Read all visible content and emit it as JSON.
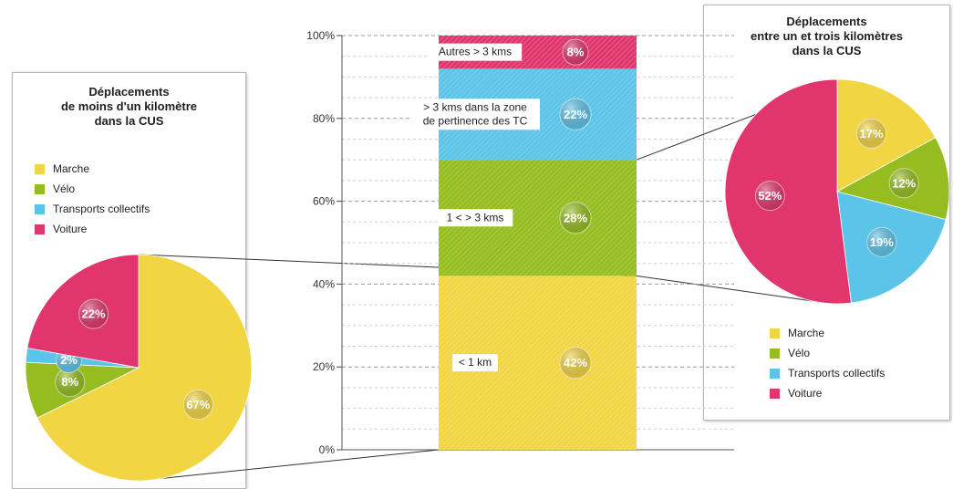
{
  "colors": {
    "marche": "#f2d543",
    "velo": "#95bd1f",
    "transports": "#5cc3e9",
    "voiture": "#e0356d"
  },
  "left_panel": {
    "title": "Déplacements\nde moins d'un kilomètre\ndans la CUS",
    "legend": [
      {
        "label": "Marche",
        "color": "#f2d543"
      },
      {
        "label": "Vélo",
        "color": "#95bd1f"
      },
      {
        "label": "Transports collectifs",
        "color": "#5cc3e9"
      },
      {
        "label": "Voiture",
        "color": "#e0356d"
      }
    ]
  },
  "right_panel": {
    "title": "Déplacements\nentre un et trois kilomètres\ndans la CUS",
    "legend": [
      {
        "label": "Marche",
        "color": "#f2d543"
      },
      {
        "label": "Vélo",
        "color": "#95bd1f"
      },
      {
        "label": "Transports collectifs",
        "color": "#5cc3e9"
      },
      {
        "label": "Voiture",
        "color": "#e0356d"
      }
    ]
  },
  "chart_data": [
    {
      "type": "bar",
      "stacked": true,
      "ylim": [
        0,
        100
      ],
      "yticks": [
        "0%",
        "20%",
        "40%",
        "60%",
        "80%",
        "100%"
      ],
      "grid": true,
      "series": [
        {
          "name": "< 1 km",
          "value": 42,
          "label": "42%",
          "color": "#f2d543"
        },
        {
          "name": "1 < > 3 kms",
          "value": 28,
          "label": "28%",
          "color": "#95bd1f"
        },
        {
          "name": "> 3 kms dans la zone\nde pertinence des TC",
          "value": 22,
          "label": "22%",
          "color": "#5cc3e9"
        },
        {
          "name": "Autres > 3 kms",
          "value": 8,
          "label": "8%",
          "color": "#e0356d"
        }
      ]
    },
    {
      "type": "pie",
      "title": "Déplacements de moins d'un kilomètre dans la CUS",
      "slices": [
        {
          "name": "Marche",
          "value": 67,
          "label": "67%",
          "color": "#f2d543"
        },
        {
          "name": "Vélo",
          "value": 8,
          "label": "8%",
          "color": "#95bd1f"
        },
        {
          "name": "Transports collectifs",
          "value": 2,
          "label": "2%",
          "color": "#5cc3e9"
        },
        {
          "name": "Voiture",
          "value": 22,
          "label": "22%",
          "color": "#e0356d"
        }
      ]
    },
    {
      "type": "pie",
      "title": "Déplacements entre un et trois kilomètres dans la CUS",
      "slices": [
        {
          "name": "Marche",
          "value": 17,
          "label": "17%",
          "color": "#f2d543"
        },
        {
          "name": "Vélo",
          "value": 12,
          "label": "12%",
          "color": "#95bd1f"
        },
        {
          "name": "Transports collectifs",
          "value": 19,
          "label": "19%",
          "color": "#5cc3e9"
        },
        {
          "name": "Voiture",
          "value": 52,
          "label": "52%",
          "color": "#e0356d"
        }
      ]
    }
  ]
}
